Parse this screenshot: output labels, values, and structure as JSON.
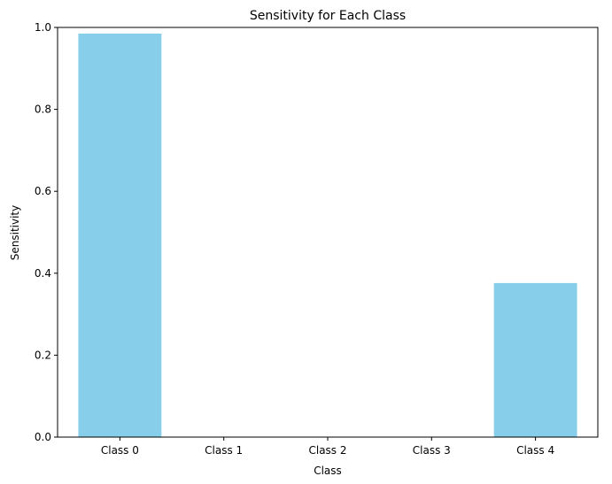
{
  "chart_data": {
    "type": "bar",
    "title": "Sensitivity for Each Class",
    "xlabel": "Class",
    "ylabel": "Sensitivity",
    "categories": [
      "Class 0",
      "Class 1",
      "Class 2",
      "Class 3",
      "Class 4"
    ],
    "values": [
      0.985,
      0.0,
      0.0,
      0.0,
      0.376
    ],
    "ylim": [
      0,
      1.0
    ],
    "yticks": [
      "0.0",
      "0.2",
      "0.4",
      "0.6",
      "0.8",
      "1.0"
    ],
    "grid": false,
    "bar_color": "#87ceeb"
  }
}
